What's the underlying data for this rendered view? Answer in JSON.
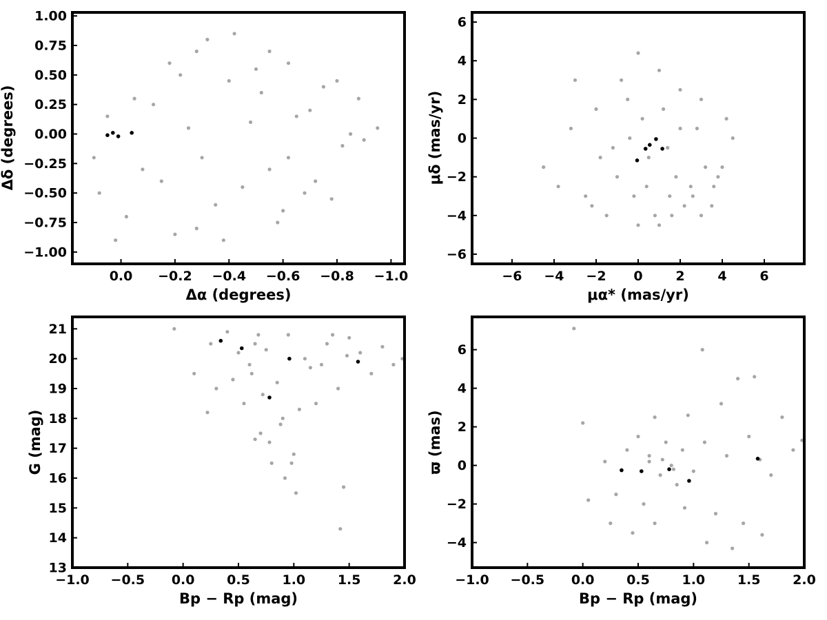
{
  "chart_data": [
    {
      "type": "scatter",
      "xlabel": "Δα (degrees)",
      "ylabel": "Δδ (degrees)",
      "xlim": [
        0.18,
        -1.05
      ],
      "ylim": [
        -1.1,
        1.03
      ],
      "x_ticks": [
        0.0,
        -0.2,
        -0.4,
        -0.6,
        -0.8,
        -1.0
      ],
      "x_tick_labels": [
        "0.0",
        "−0.2",
        "−0.4",
        "−0.6",
        "−0.8",
        "−1.0"
      ],
      "y_ticks": [
        -1.0,
        -0.75,
        -0.5,
        -0.25,
        0.0,
        0.25,
        0.5,
        0.75,
        1.0
      ],
      "y_tick_labels": [
        "−1.00",
        "−0.75",
        "−0.50",
        "−0.25",
        "0.00",
        "0.25",
        "0.50",
        "0.75",
        "1.00"
      ],
      "grid": false,
      "series": [
        {
          "color": "#a6a6a6",
          "x": [
            0.1,
            0.05,
            -0.05,
            -0.15,
            -0.22,
            -0.28,
            -0.35,
            -0.42,
            -0.48,
            -0.55,
            -0.62,
            -0.68,
            -0.75,
            -0.82,
            -0.88,
            -0.95,
            0.08,
            -0.02,
            -0.12,
            -0.2,
            -0.3,
            -0.4,
            -0.5,
            -0.6,
            -0.7,
            -0.8,
            -0.9,
            -0.25,
            -0.32,
            -0.45,
            -0.52,
            -0.58,
            -0.65,
            -0.72,
            -0.85,
            -0.18,
            -0.38,
            -0.62,
            -0.78,
            0.02,
            -0.08,
            -0.28,
            -0.55
          ],
          "y": [
            -0.2,
            0.15,
            0.3,
            -0.4,
            0.5,
            0.7,
            -0.6,
            0.85,
            0.1,
            -0.3,
            0.6,
            -0.5,
            0.4,
            -0.1,
            0.3,
            0.05,
            -0.5,
            -0.7,
            0.25,
            -0.85,
            -0.2,
            0.45,
            0.55,
            -0.65,
            0.2,
            0.45,
            -0.05,
            0.05,
            0.8,
            -0.45,
            0.35,
            -0.75,
            0.15,
            -0.4,
            0.0,
            0.6,
            -0.9,
            -0.2,
            -0.55,
            -0.9,
            -0.3,
            -0.8,
            0.7
          ]
        },
        {
          "color": "#000000",
          "x": [
            0.05,
            0.03,
            0.01,
            -0.04
          ],
          "y": [
            -0.01,
            0.01,
            -0.02,
            0.01
          ]
        }
      ]
    },
    {
      "type": "scatter",
      "xlabel": "μα* (mas/yr)",
      "ylabel": "μδ (mas/yr)",
      "xlim": [
        -7.9,
        7.9
      ],
      "ylim": [
        -6.5,
        6.5
      ],
      "x_ticks": [
        -6,
        -4,
        -2,
        0,
        2,
        4,
        6
      ],
      "x_tick_labels": [
        "−6",
        "−4",
        "−2",
        "0",
        "2",
        "4",
        "6"
      ],
      "y_ticks": [
        -6,
        -4,
        -2,
        0,
        2,
        4,
        6
      ],
      "y_tick_labels": [
        "−6",
        "−4",
        "−2",
        "0",
        "2",
        "4",
        "6"
      ],
      "grid": false,
      "series": [
        {
          "color": "#a6a6a6",
          "x": [
            -4.5,
            -3.8,
            -3.2,
            -2.5,
            -2.0,
            -1.5,
            -1.0,
            -0.5,
            0.0,
            0.5,
            1.0,
            1.5,
            2.0,
            2.5,
            3.0,
            3.5,
            4.0,
            4.5,
            -2.2,
            -1.2,
            0.2,
            0.8,
            1.8,
            2.8,
            3.8,
            -0.8,
            0.4,
            1.2,
            2.2,
            3.2,
            4.2,
            -1.8,
            -0.2,
            1.6,
            2.6,
            3.6,
            0.0,
            1.0,
            -3.0,
            2.0,
            3.0,
            -0.4,
            1.4
          ],
          "y": [
            -1.5,
            -2.5,
            0.5,
            -3.0,
            1.5,
            -4.0,
            -2.0,
            2.0,
            -4.5,
            -1.0,
            3.5,
            -3.0,
            0.5,
            -2.5,
            2.0,
            -3.5,
            -1.5,
            0.0,
            -3.5,
            -0.5,
            1.0,
            -4.0,
            -2.0,
            0.5,
            -2.0,
            3.0,
            -2.5,
            1.5,
            -3.5,
            -1.5,
            1.0,
            -1.0,
            -3.0,
            -4.0,
            -3.0,
            -2.5,
            4.4,
            -4.5,
            3.0,
            2.5,
            -4.0,
            0.0,
            -0.5
          ]
        },
        {
          "color": "#000000",
          "x": [
            -0.05,
            0.35,
            0.55,
            0.85,
            1.15
          ],
          "y": [
            -1.15,
            -0.55,
            -0.35,
            -0.05,
            -0.55
          ]
        }
      ]
    },
    {
      "type": "scatter",
      "xlabel": "Bp − Rp (mag)",
      "ylabel": "G (mag)",
      "xlim": [
        -1.0,
        2.0
      ],
      "ylim": [
        13.0,
        21.4
      ],
      "x_ticks": [
        -1.0,
        -0.5,
        0.0,
        0.5,
        1.0,
        1.5,
        2.0
      ],
      "x_tick_labels": [
        "−1.0",
        "−0.5",
        "0.0",
        "0.5",
        "1.0",
        "1.5",
        "2.0"
      ],
      "y_ticks": [
        13,
        14,
        15,
        16,
        17,
        18,
        19,
        20,
        21
      ],
      "y_tick_labels": [
        "13",
        "14",
        "15",
        "16",
        "17",
        "18",
        "19",
        "20",
        "21"
      ],
      "grid": false,
      "series": [
        {
          "color": "#a6a6a6",
          "x": [
            -0.08,
            0.1,
            0.22,
            0.3,
            0.4,
            0.5,
            0.55,
            0.6,
            0.65,
            0.7,
            0.75,
            0.8,
            0.85,
            0.9,
            0.95,
            1.0,
            1.1,
            1.2,
            1.3,
            1.4,
            1.5,
            1.6,
            1.7,
            1.8,
            1.9,
            1.98,
            0.62,
            0.68,
            0.72,
            0.78,
            0.88,
            0.98,
            1.05,
            1.15,
            1.25,
            0.25,
            0.45,
            1.35,
            1.48,
            1.02,
            1.45,
            0.65,
            0.92,
            1.42
          ],
          "y": [
            21.0,
            19.5,
            18.2,
            19.0,
            20.9,
            20.2,
            18.5,
            19.8,
            20.5,
            17.5,
            20.3,
            16.5,
            19.2,
            18.0,
            20.8,
            16.8,
            20.0,
            18.5,
            20.5,
            19.0,
            20.7,
            20.2,
            19.5,
            20.4,
            19.8,
            20.0,
            19.5,
            20.8,
            18.8,
            17.2,
            17.8,
            16.5,
            18.3,
            19.7,
            19.8,
            20.5,
            19.3,
            20.8,
            20.1,
            15.5,
            15.7,
            17.3,
            16.0,
            14.3
          ]
        },
        {
          "color": "#000000",
          "x": [
            0.34,
            0.53,
            0.78,
            0.96,
            1.58
          ],
          "y": [
            20.6,
            20.35,
            18.7,
            20.0,
            19.9
          ]
        }
      ]
    },
    {
      "type": "scatter",
      "xlabel": "Bp − Rp (mag)",
      "ylabel": "ϖ (mas)",
      "xlim": [
        -1.0,
        2.0
      ],
      "ylim": [
        -5.3,
        7.7
      ],
      "x_ticks": [
        -1.0,
        -0.5,
        0.0,
        0.5,
        1.0,
        1.5,
        2.0
      ],
      "x_tick_labels": [
        "−1.0",
        "−0.5",
        "0.0",
        "0.5",
        "1.0",
        "1.5",
        "2.0"
      ],
      "y_ticks": [
        -4,
        -2,
        0,
        2,
        4,
        6
      ],
      "y_tick_labels": [
        "−4",
        "−2",
        "0",
        "2",
        "4",
        "6"
      ],
      "grid": false,
      "series": [
        {
          "color": "#a6a6a6",
          "x": [
            -0.08,
            0.0,
            0.05,
            0.2,
            0.3,
            0.4,
            0.5,
            0.55,
            0.6,
            0.65,
            0.7,
            0.75,
            0.8,
            0.85,
            0.9,
            0.95,
            1.0,
            1.1,
            1.2,
            1.3,
            1.4,
            1.5,
            1.6,
            1.7,
            1.8,
            1.9,
            1.98,
            1.08,
            1.35,
            1.55,
            0.65,
            0.45,
            0.92,
            1.12,
            0.25,
            0.6,
            0.72,
            0.82,
            1.25,
            1.45,
            1.62
          ],
          "y": [
            7.1,
            2.2,
            -1.8,
            0.2,
            -1.5,
            0.8,
            1.5,
            -2.0,
            0.5,
            2.5,
            -0.5,
            1.2,
            0.0,
            -1.0,
            0.8,
            2.6,
            -0.3,
            1.2,
            -2.5,
            0.5,
            4.5,
            1.5,
            0.3,
            -0.5,
            2.5,
            0.8,
            1.3,
            6.0,
            -4.3,
            4.6,
            -3.0,
            -3.5,
            -2.2,
            -4.0,
            -3.0,
            0.2,
            0.3,
            -0.2,
            3.2,
            -3.0,
            -3.6
          ]
        },
        {
          "color": "#000000",
          "x": [
            0.35,
            0.53,
            0.78,
            0.96,
            1.58
          ],
          "y": [
            -0.25,
            -0.3,
            -0.2,
            -0.8,
            0.35
          ]
        }
      ]
    }
  ]
}
